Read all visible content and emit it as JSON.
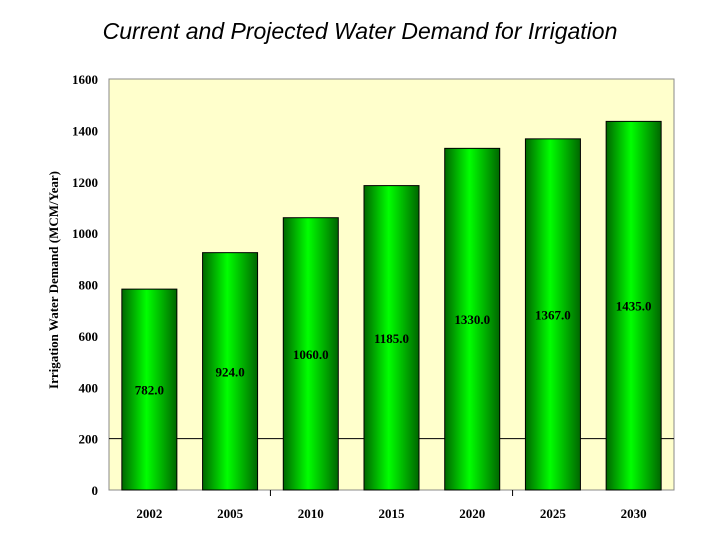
{
  "chart_data": {
    "type": "bar",
    "title": "Current and Projected Water Demand for Irrigation",
    "xlabel": "",
    "ylabel": "Irrigation Water Demand (MCM/Year)",
    "categories": [
      "2002",
      "2005",
      "2010",
      "2015",
      "2020",
      "2025",
      "2030"
    ],
    "values": [
      782.0,
      924.0,
      1060.0,
      1185.0,
      1330.0,
      1367.0,
      1435.0
    ],
    "data_labels": [
      "782.0",
      "924.0",
      "1060.0",
      "1185.0",
      "1330.0",
      "1367.0",
      "1435.0"
    ],
    "ylim": [
      0,
      1600
    ],
    "yticks": [
      "0",
      "200",
      "400",
      "600",
      "800",
      "1000",
      "1200",
      "1400",
      "1600"
    ],
    "gridlines": [
      200
    ],
    "legend": "none",
    "colors": {
      "bar": "#00ee00",
      "bar_dark": "#006600",
      "plot_bg": "#ffffcc"
    }
  }
}
